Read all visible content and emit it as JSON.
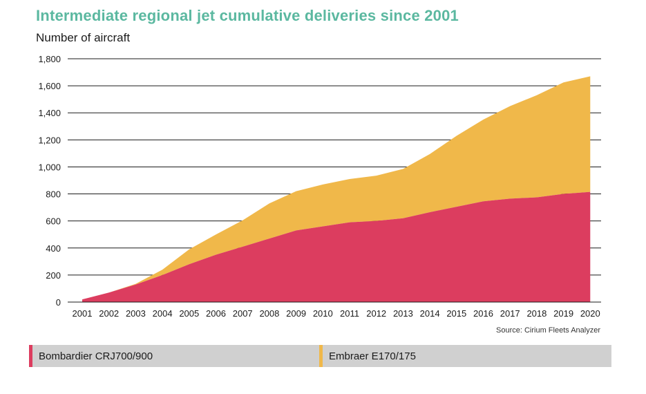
{
  "title": "Intermediate regional jet cumulative deliveries since 2001",
  "source": "Source: Cirium Fleets Analyzer",
  "colors": {
    "title": "#5bb8a0",
    "bombardier": "#dc3d5f",
    "embraer": "#f0b84a"
  },
  "legend": [
    {
      "label": "Bombardier CRJ700/900",
      "color": "#dc3d5f"
    },
    {
      "label": "Embraer E170/175",
      "color": "#f0b84a"
    }
  ],
  "chart_data": {
    "type": "area",
    "stacked": true,
    "title": "Intermediate regional jet cumulative deliveries since 2001",
    "ylabel": "Number of aircraft",
    "xlabel": "",
    "x": [
      "2001",
      "2002",
      "2003",
      "2004",
      "2005",
      "2006",
      "2007",
      "2008",
      "2009",
      "2010",
      "2011",
      "2012",
      "2013",
      "2014",
      "2015",
      "2016",
      "2017",
      "2018",
      "2019",
      "2020"
    ],
    "ylim": [
      0,
      1800
    ],
    "yticks": [
      "0",
      "200",
      "400",
      "600",
      "800",
      "1,000",
      "1,200",
      "1,400",
      "1,600",
      "1,800"
    ],
    "ytick_values": [
      0,
      200,
      400,
      600,
      800,
      1000,
      1200,
      1400,
      1600,
      1800
    ],
    "grid": true,
    "legend_position": "bottom",
    "series": [
      {
        "name": "Bombardier CRJ700/900",
        "color": "#dc3d5f",
        "values": [
          20,
          70,
          130,
          200,
          280,
          350,
          410,
          470,
          530,
          560,
          590,
          600,
          620,
          665,
          705,
          745,
          765,
          775,
          800,
          815
        ]
      },
      {
        "name": "Embraer E170/175",
        "color": "#f0b84a",
        "values": [
          0,
          0,
          5,
          40,
          110,
          150,
          195,
          260,
          290,
          310,
          320,
          335,
          365,
          430,
          525,
          605,
          685,
          755,
          825,
          855
        ]
      }
    ]
  }
}
